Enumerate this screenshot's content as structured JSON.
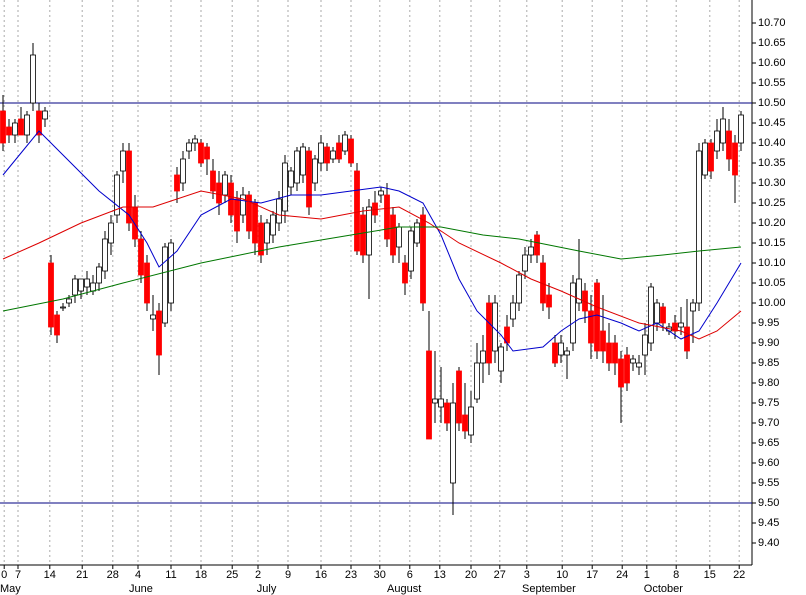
{
  "chart_data": {
    "type": "candlestick",
    "up_color": "#ffffff",
    "down_color": "#ff0000",
    "grid": true,
    "xlim": [
      -0.5,
      124.8333
    ],
    "ylim": [
      9.345,
      10.7575
    ],
    "xticks": [
      {
        "value": 0.2,
        "label": "0"
      },
      {
        "value": 2.5,
        "label": "7"
      },
      {
        "value": 7.8,
        "label": "14"
      },
      {
        "value": 13.2,
        "label": "21"
      },
      {
        "value": 18.3,
        "label": "28"
      },
      {
        "value": 22.5,
        "label": "4"
      },
      {
        "value": 28,
        "label": "11"
      },
      {
        "value": 33,
        "label": "18"
      },
      {
        "value": 38.2,
        "label": "25"
      },
      {
        "value": 42.5,
        "label": "2"
      },
      {
        "value": 47.5,
        "label": "9"
      },
      {
        "value": 53,
        "label": "16"
      },
      {
        "value": 58,
        "label": "23"
      },
      {
        "value": 62.8,
        "label": "30"
      },
      {
        "value": 67.8,
        "label": "6"
      },
      {
        "value": 72.8,
        "label": "13"
      },
      {
        "value": 78,
        "label": "20"
      },
      {
        "value": 82.8,
        "label": "27"
      },
      {
        "value": 87.3,
        "label": "3"
      },
      {
        "value": 93.2,
        "label": "10"
      },
      {
        "value": 98.2,
        "label": "17"
      },
      {
        "value": 103.2,
        "label": "24"
      },
      {
        "value": 107.3,
        "label": "1"
      },
      {
        "value": 112.2,
        "label": "8"
      },
      {
        "value": 117.8,
        "label": "15"
      },
      {
        "value": 122.7,
        "label": "22"
      }
    ],
    "months": [
      {
        "value": -0.5,
        "label": "May"
      },
      {
        "value": 21,
        "label": "June"
      },
      {
        "value": 42.3,
        "label": "July"
      },
      {
        "value": 64,
        "label": "August"
      },
      {
        "value": 86.5,
        "label": "September"
      },
      {
        "value": 106.8,
        "label": "October"
      }
    ],
    "yticks": [
      {
        "value": 10.7,
        "label": "10.70"
      },
      {
        "value": 10.65,
        "label": "10.65"
      },
      {
        "value": 10.6,
        "label": "10.60"
      },
      {
        "value": 10.55,
        "label": "10.55"
      },
      {
        "value": 10.5,
        "label": "10.50"
      },
      {
        "value": 10.45,
        "label": "10.45"
      },
      {
        "value": 10.4,
        "label": "10.40"
      },
      {
        "value": 10.35,
        "label": "10.35"
      },
      {
        "value": 10.3,
        "label": "10.30"
      },
      {
        "value": 10.25,
        "label": "10.25"
      },
      {
        "value": 10.2,
        "label": "10.20"
      },
      {
        "value": 10.15,
        "label": "10.15"
      },
      {
        "value": 10.1,
        "label": "10.10"
      },
      {
        "value": 10.05,
        "label": "10.05"
      },
      {
        "value": 10,
        "label": "10.00"
      },
      {
        "value": 9.95,
        "label": "9.95"
      },
      {
        "value": 9.9,
        "label": "9.90"
      },
      {
        "value": 9.85,
        "label": "9.85"
      },
      {
        "value": 9.8,
        "label": "9.80"
      },
      {
        "value": 9.75,
        "label": "9.75"
      },
      {
        "value": 9.7,
        "label": "9.70"
      },
      {
        "value": 9.65,
        "label": "9.65"
      },
      {
        "value": 9.6,
        "label": "9.60"
      },
      {
        "value": 9.55,
        "label": "9.55"
      },
      {
        "value": 9.5,
        "label": "9.50"
      },
      {
        "value": 9.45,
        "label": "9.45"
      },
      {
        "value": 9.4,
        "label": "9.40"
      }
    ],
    "hlines": [
      10.5,
      9.5
    ],
    "hline_color": "#000080",
    "open": [
      10.48,
      10.44,
      10.42,
      10.46,
      10.42,
      10.5,
      10.48,
      10.46,
      10.1,
      9.97,
      9.99,
      10.0,
      10.02,
      10.03,
      10.04,
      10.03,
      10.05,
      10.08,
      10.15,
      10.22,
      10.33,
      10.38,
      10.24,
      10.16,
      10.1,
      9.96,
      9.98,
      9.95,
      10.0,
      10.32,
      10.3,
      10.38,
      10.4,
      10.4,
      10.39,
      10.33,
      10.3,
      10.27,
      10.3,
      10.26,
      10.22,
      10.27,
      10.25,
      10.2,
      10.15,
      10.17,
      10.2,
      10.23,
      10.29,
      10.3,
      10.32,
      10.38,
      10.3,
      10.35,
      10.39,
      10.36,
      10.4,
      10.38,
      10.41,
      10.33,
      10.22,
      10.12,
      10.25,
      10.27,
      10.27,
      10.22,
      10.14,
      10.1,
      10.08,
      10.15,
      10.22,
      9.88,
      9.75,
      9.74,
      9.75,
      9.55,
      9.83,
      9.72,
      9.67,
      9.76,
      9.85,
      10.0,
      9.88,
      9.83,
      9.94,
      9.96,
      10.0,
      10.08,
      10.12,
      10.17,
      10.1,
      10.02,
      9.9,
      9.87,
      9.87,
      9.9,
      10.0,
      10.03,
      9.98,
      10.05,
      9.93,
      9.9,
      9.9,
      9.86,
      9.87,
      9.85,
      9.84,
      9.87,
      9.9,
      9.95,
      9.99,
      9.93,
      9.95,
      9.94,
      9.94,
      9.98,
      10.0,
      10.32,
      10.4,
      10.38,
      10.4,
      10.43,
      10.4,
      10.4
    ],
    "high": [
      10.52,
      10.46,
      10.46,
      10.49,
      10.48,
      10.65,
      10.5,
      10.49,
      10.12,
      9.98,
      10.0,
      10.02,
      10.07,
      10.06,
      10.08,
      10.07,
      10.1,
      10.18,
      10.22,
      10.33,
      10.4,
      10.4,
      10.27,
      10.18,
      10.12,
      10.02,
      10.0,
      10.15,
      10.16,
      10.34,
      10.38,
      10.41,
      10.42,
      10.41,
      10.4,
      10.36,
      10.33,
      10.33,
      10.32,
      10.28,
      10.29,
      10.28,
      10.26,
      10.22,
      10.21,
      10.23,
      10.28,
      10.37,
      10.34,
      10.39,
      10.4,
      10.39,
      10.37,
      10.42,
      10.4,
      10.39,
      10.42,
      10.43,
      10.42,
      10.35,
      10.24,
      10.26,
      10.28,
      10.29,
      10.3,
      10.24,
      10.2,
      10.12,
      10.19,
      10.21,
      10.24,
      9.98,
      9.88,
      9.84,
      9.76,
      9.8,
      9.84,
      9.8,
      9.78,
      9.9,
      9.92,
      10.02,
      10.02,
      9.9,
      9.97,
      10.02,
      10.08,
      10.14,
      10.16,
      10.18,
      10.12,
      10.05,
      9.92,
      9.92,
      9.89,
      10.07,
      10.16,
      10.05,
      10.02,
      10.06,
      10.02,
      9.95,
      9.92,
      9.88,
      9.89,
      9.87,
      9.87,
      9.95,
      10.05,
      10.01,
      10.0,
      9.95,
      9.97,
      9.99,
      10.01,
      10.01,
      10.4,
      10.41,
      10.41,
      10.46,
      10.49,
      10.46,
      10.42,
      10.48
    ],
    "low": [
      10.38,
      10.4,
      10.4,
      10.42,
      10.4,
      10.48,
      10.4,
      10.44,
      9.92,
      9.9,
      9.98,
      9.99,
      10.0,
      10.01,
      10.02,
      10.02,
      10.03,
      10.06,
      10.12,
      10.2,
      10.3,
      10.18,
      10.14,
      10.05,
      9.98,
      9.93,
      9.82,
      9.94,
      9.98,
      10.25,
      10.28,
      10.36,
      10.38,
      10.34,
      10.32,
      10.26,
      10.22,
      10.25,
      10.2,
      10.15,
      10.2,
      10.16,
      10.12,
      10.1,
      10.12,
      10.15,
      10.18,
      10.2,
      10.27,
      10.28,
      10.3,
      10.22,
      10.28,
      10.33,
      10.33,
      10.35,
      10.35,
      10.37,
      10.34,
      10.12,
      10.1,
      10.01,
      10.2,
      10.25,
      10.14,
      10.1,
      10.1,
      10.02,
      10.06,
      10.14,
      9.98,
      9.66,
      9.7,
      9.7,
      9.68,
      9.47,
      9.68,
      9.66,
      9.65,
      9.75,
      9.8,
      9.82,
      9.85,
      9.8,
      9.88,
      9.94,
      9.98,
      10.06,
      10.1,
      10.1,
      9.98,
      9.96,
      9.84,
      9.85,
      9.81,
      9.88,
      9.98,
      9.95,
      9.86,
      9.86,
      9.85,
      9.83,
      9.82,
      9.7,
      9.78,
      9.83,
      9.82,
      9.82,
      9.88,
      9.93,
      9.93,
      9.92,
      9.91,
      9.92,
      9.86,
      9.9,
      9.98,
      10.31,
      10.31,
      10.36,
      10.38,
      10.33,
      10.25,
      10.38
    ],
    "close": [
      10.4,
      10.42,
      10.45,
      10.42,
      10.47,
      10.62,
      10.42,
      10.48,
      9.94,
      9.92,
      9.99,
      10.01,
      10.06,
      10.06,
      10.06,
      10.05,
      10.09,
      10.16,
      10.2,
      10.32,
      10.38,
      10.2,
      10.16,
      10.07,
      10.0,
      9.97,
      9.87,
      10.14,
      10.15,
      10.28,
      10.36,
      10.4,
      10.41,
      10.35,
      10.36,
      10.28,
      10.25,
      10.32,
      10.22,
      10.18,
      10.27,
      10.18,
      10.15,
      10.12,
      10.2,
      10.22,
      10.26,
      10.35,
      10.33,
      10.38,
      10.39,
      10.24,
      10.36,
      10.4,
      10.35,
      10.38,
      10.36,
      10.42,
      10.35,
      10.13,
      10.12,
      10.24,
      10.22,
      10.28,
      10.16,
      10.12,
      10.19,
      10.05,
      10.18,
      10.2,
      10.0,
      9.66,
      9.76,
      9.76,
      9.7,
      9.75,
      9.7,
      9.68,
      9.74,
      9.85,
      9.88,
      9.85,
      10.0,
      9.89,
      9.9,
      10.0,
      10.07,
      10.12,
      10.14,
      10.12,
      10.0,
      9.99,
      9.85,
      9.9,
      9.88,
      10.05,
      10.06,
      9.98,
      9.9,
      9.88,
      9.88,
      9.85,
      9.85,
      9.79,
      9.8,
      9.86,
      9.85,
      9.92,
      10.04,
      10.0,
      9.95,
      9.94,
      9.93,
      9.95,
      9.88,
      10.0,
      10.38,
      10.4,
      10.33,
      10.43,
      10.46,
      10.36,
      10.32,
      10.47
    ],
    "series": [
      {
        "color": "#0000cc",
        "x": [
          0,
          6,
          16,
          21,
          24,
          26,
          29,
          33,
          38,
          43,
          48,
          53,
          58,
          63,
          66,
          70,
          73,
          76,
          79,
          83,
          85,
          90,
          93,
          96,
          99,
          103,
          106,
          109,
          113,
          116,
          119,
          123
        ],
        "values": [
          10.32,
          10.43,
          10.28,
          10.22,
          10.15,
          10.09,
          10.13,
          10.22,
          10.26,
          10.25,
          10.27,
          10.27,
          10.28,
          10.29,
          10.28,
          10.25,
          10.17,
          10.06,
          9.98,
          9.92,
          9.88,
          9.89,
          9.93,
          9.96,
          9.97,
          9.95,
          9.93,
          9.95,
          9.91,
          9.93,
          10.0,
          10.1
        ]
      },
      {
        "color": "#dd0000",
        "x": [
          0,
          6,
          13,
          20,
          25,
          33,
          40,
          46,
          53,
          60,
          66,
          71,
          76,
          83,
          88,
          93,
          99,
          106,
          113,
          116,
          119,
          123
        ],
        "values": [
          10.11,
          10.15,
          10.2,
          10.24,
          10.24,
          10.28,
          10.26,
          10.22,
          10.21,
          10.23,
          10.24,
          10.2,
          10.15,
          10.1,
          10.06,
          10.03,
          9.99,
          9.95,
          9.93,
          9.91,
          9.93,
          9.98
        ]
      },
      {
        "color": "#007700",
        "x": [
          0,
          10,
          20,
          33,
          46,
          58,
          66,
          73,
          80,
          86,
          96,
          103,
          110,
          116,
          123
        ],
        "values": [
          9.98,
          10.01,
          10.05,
          10.1,
          10.14,
          10.17,
          10.19,
          10.19,
          10.17,
          10.16,
          10.13,
          10.11,
          10.12,
          10.13,
          10.14
        ]
      }
    ]
  }
}
